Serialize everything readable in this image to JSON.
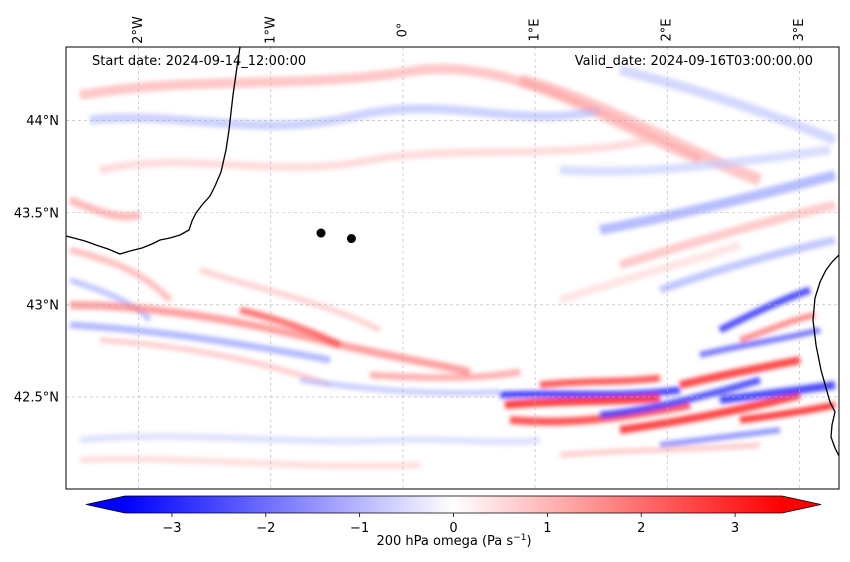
{
  "map": {
    "start_label": "Start date: 2024-09-14_12:00:00",
    "valid_label": "Valid_date: 2024-09-16T03:00:00.00",
    "lon_ticks": [
      "2°W",
      "1°W",
      "0°",
      "1°E",
      "2°E",
      "3°E"
    ],
    "lat_ticks": [
      "44°N",
      "43.5°N",
      "43°N",
      "42.5°N"
    ],
    "lon_values": [
      -2,
      -1,
      0,
      1,
      2,
      3
    ],
    "lat_values": [
      44,
      43.5,
      43,
      42.5
    ],
    "lon_range": [
      -2.55,
      3.3
    ],
    "lat_range": [
      42.0,
      44.4
    ],
    "markers": [
      {
        "name": "point-a",
        "lon": -0.62,
        "lat": 43.39
      },
      {
        "name": "point-b",
        "lon": -0.39,
        "lat": 43.36
      }
    ]
  },
  "colorbar": {
    "label": "200 hPa omega (Pa s",
    "label_exp": "−1",
    "label_end": ")",
    "ticks": [
      "−3",
      "−2",
      "−1",
      "0",
      "1",
      "2",
      "3"
    ],
    "tick_values": [
      -3,
      -2,
      -1,
      0,
      1,
      2,
      3
    ],
    "range": [
      -3.5,
      3.5
    ],
    "min_color": "#0000ff",
    "mid_color": "#ffffff",
    "max_color": "#ff0000"
  }
}
